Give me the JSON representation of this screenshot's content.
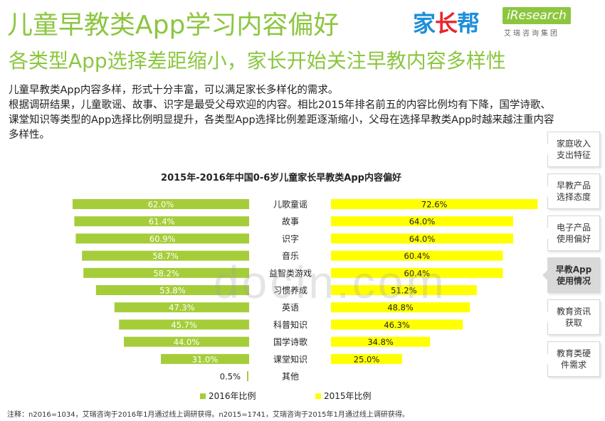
{
  "header": {
    "title": "儿童早教类App学习内容偏好",
    "subtitle": "各类型App选择差距缩小，家长开始关注早教内容多样性"
  },
  "logo": {
    "jiazhangbang": "家长帮",
    "iresearch": "iResearch",
    "iresearch_cn": "艾瑞咨询集团"
  },
  "body": {
    "line1": "儿童早教类App内容多样，形式十分丰富，可以满足家长多样化的需求。",
    "line2": "根据调研结果，儿童歌谣、故事、识字是最受父母欢迎的内容。相比2015年排名前五的内容比例均有下降，国学诗歌、课堂知识等类型的App选择比例明显提升，各类型App选择比例差距逐渐缩小，父母在选择早教类App时越来越注重内容多样性。"
  },
  "sidebar": {
    "items": [
      {
        "label": "家庭收入\n支出特征"
      },
      {
        "label": "早教产品\n选择态度"
      },
      {
        "label": "电子产品\n使用偏好"
      },
      {
        "label": "早教App\n使用情况"
      },
      {
        "label": "教育资讯\n获取"
      },
      {
        "label": "教育类硬\n件需求"
      }
    ],
    "active_index": 3
  },
  "footnote": "注释：n2016=1034，艾瑞咨询于2016年1月通过线上调研获得。n2015=1741，艾瑞咨询于2015年1月通过线上调研获得。",
  "watermark": "docin.com",
  "chart_data": {
    "type": "bar",
    "title": "2015年-2016年中国0-6岁儿童家长早教类App内容偏好",
    "categories": [
      "儿歌童谣",
      "故事",
      "识字",
      "音乐",
      "益智类游戏",
      "习惯养成",
      "英语",
      "科普知识",
      "国学诗歌",
      "课堂知识",
      "其他"
    ],
    "series": [
      {
        "name": "2016年比例",
        "color": "#a5cd39",
        "values": [
          62.0,
          61.4,
          60.9,
          58.7,
          58.2,
          53.8,
          47.3,
          45.7,
          44.0,
          31.0,
          0.5
        ],
        "labels": [
          "62.0%",
          "61.4%",
          "60.9%",
          "58.7%",
          "58.2%",
          "53.8%",
          "47.3%",
          "45.7%",
          "44.0%",
          "31.0%",
          "0.5%"
        ]
      },
      {
        "name": "2015年比例",
        "color": "#ffff00",
        "values": [
          72.6,
          64.0,
          64.0,
          60.4,
          60.4,
          51.2,
          48.8,
          46.3,
          34.8,
          25.0,
          null
        ],
        "labels": [
          "72.6%",
          "64.0%",
          "64.0%",
          "60.4%",
          "60.4%",
          "51.2%",
          "48.8%",
          "46.3%",
          "34.8%",
          "25.0%",
          ""
        ]
      }
    ],
    "xlabel": "",
    "ylabel": "",
    "layout": "butterfly",
    "legend_position": "bottom"
  }
}
